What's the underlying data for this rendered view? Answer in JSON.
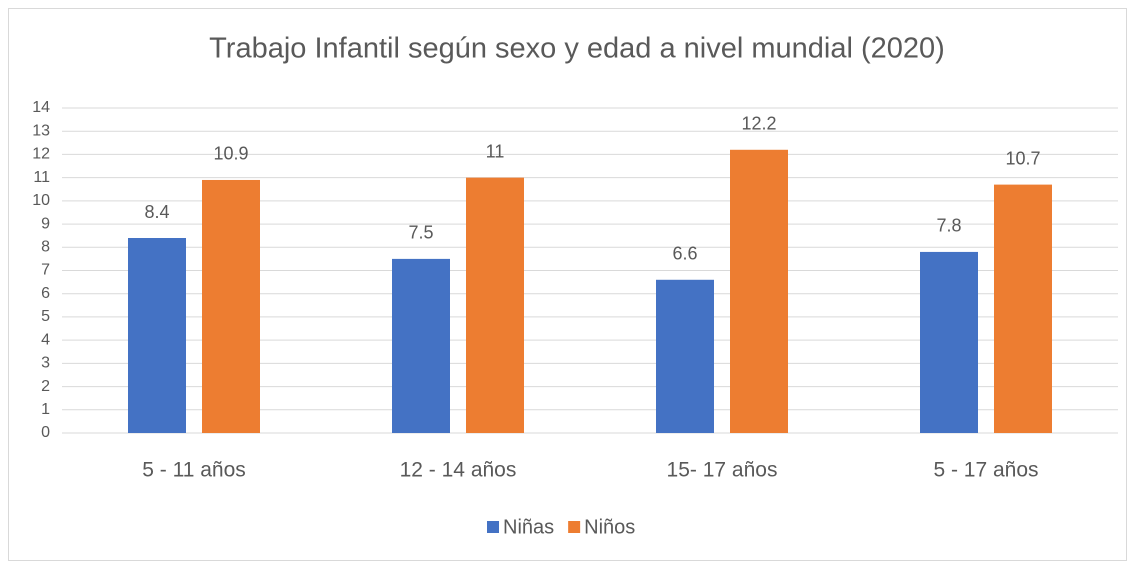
{
  "chart_data": {
    "type": "bar",
    "title": "Trabajo Infantil según sexo y edad a nivel mundial (2020)",
    "categories": [
      "5 - 11 años",
      "12 - 14 años",
      "15- 17 años",
      "5 - 17 años"
    ],
    "series": [
      {
        "name": "Niñas",
        "color": "#4472c4",
        "values": [
          8.4,
          7.5,
          6.6,
          7.8
        ]
      },
      {
        "name": "Niños",
        "color": "#ed7d31",
        "values": [
          10.9,
          11,
          12.2,
          10.7
        ]
      }
    ],
    "ylim": [
      0,
      14
    ],
    "yticks": [
      0,
      1,
      2,
      3,
      4,
      5,
      6,
      7,
      8,
      9,
      10,
      11,
      12,
      13,
      14
    ],
    "grid": true,
    "legend": "bottom"
  }
}
